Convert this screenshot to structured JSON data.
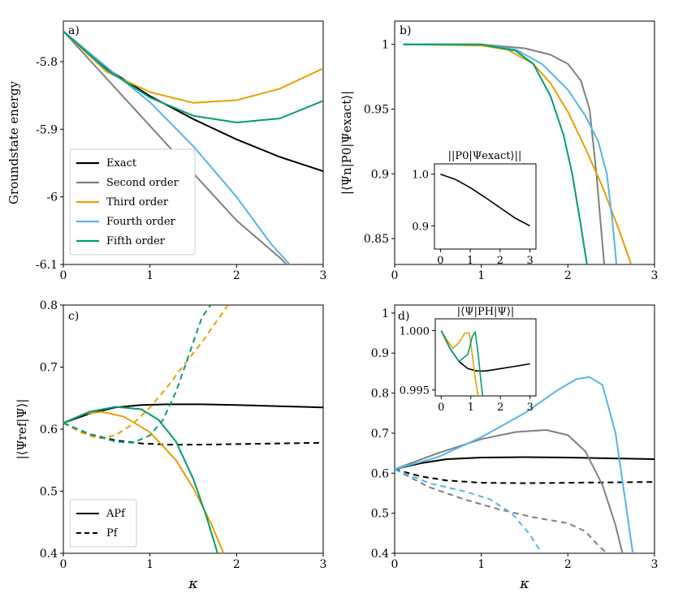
{
  "chart_data": [
    {
      "id": "a",
      "type": "line",
      "panel_label": "a)",
      "xlabel": "",
      "ylabel": "Groundstate energy",
      "xlim": [
        0,
        3
      ],
      "ylim": [
        -6.1,
        -5.74
      ],
      "xticks": [
        0,
        1,
        2,
        3
      ],
      "xtick_labels": [
        "0",
        "1",
        "2",
        "3"
      ],
      "yticks": [
        -6.1,
        -6.0,
        -5.9,
        -5.8
      ],
      "ytick_labels": [
        "-6.1",
        "-6",
        "-5.9",
        "-5.8"
      ],
      "legend": {
        "position": "bottom-left",
        "entries": [
          "Exact",
          "Second order",
          "Third order",
          "Fourth order",
          "Fifth order"
        ]
      },
      "series": [
        {
          "name": "Exact",
          "color": "#000000",
          "style": "solid",
          "x": [
            0,
            0.5,
            1.0,
            1.5,
            2.0,
            2.5,
            3.0
          ],
          "y": [
            -5.755,
            -5.81,
            -5.851,
            -5.885,
            -5.915,
            -5.941,
            -5.962
          ]
        },
        {
          "name": "Second order",
          "color": "#808080",
          "style": "solid",
          "x": [
            0,
            0.5,
            1.0,
            1.5,
            2.0,
            2.5,
            2.62
          ],
          "y": [
            -5.755,
            -5.825,
            -5.895,
            -5.965,
            -6.035,
            -6.09,
            -6.105
          ]
        },
        {
          "name": "Third order",
          "color": "#e6a000",
          "style": "solid",
          "x": [
            0,
            0.5,
            1.0,
            1.5,
            2.0,
            2.5,
            3.0
          ],
          "y": [
            -5.755,
            -5.815,
            -5.845,
            -5.861,
            -5.857,
            -5.84,
            -5.81
          ]
        },
        {
          "name": "Fourth order",
          "color": "#56b4e9",
          "style": "solid",
          "x": [
            0,
            0.5,
            1.0,
            1.5,
            2.0,
            2.4,
            2.65
          ],
          "y": [
            -5.755,
            -5.808,
            -5.86,
            -5.925,
            -6.0,
            -6.07,
            -6.105
          ]
        },
        {
          "name": "Fifth order",
          "color": "#009e73",
          "style": "solid",
          "x": [
            0,
            0.5,
            1.0,
            1.5,
            2.0,
            2.5,
            3.0
          ],
          "y": [
            -5.755,
            -5.812,
            -5.853,
            -5.88,
            -5.89,
            -5.884,
            -5.858
          ]
        }
      ]
    },
    {
      "id": "b",
      "type": "line",
      "panel_label": "b)",
      "xlabel": "",
      "ylabel": "|⟨Ψn|P0|Ψexact⟩|",
      "xlim": [
        0,
        3
      ],
      "ylim": [
        0.83,
        1.018
      ],
      "xticks": [
        0,
        1,
        2,
        3
      ],
      "xtick_labels": [
        "0",
        "1",
        "2",
        "3"
      ],
      "yticks": [
        0.85,
        0.9,
        0.95,
        1.0
      ],
      "ytick_labels": [
        "0.85",
        "0.9",
        "0.95",
        "1"
      ],
      "series": [
        {
          "name": "Second order",
          "color": "#808080",
          "style": "solid",
          "x": [
            0.1,
            1.0,
            1.5,
            1.8,
            2.0,
            2.15,
            2.25,
            2.33,
            2.38,
            2.42
          ],
          "y": [
            1.0,
            1.0,
            0.997,
            0.992,
            0.985,
            0.972,
            0.95,
            0.9,
            0.86,
            0.83
          ]
        },
        {
          "name": "Third order",
          "color": "#e6a000",
          "style": "solid",
          "x": [
            0.1,
            1.0,
            1.3,
            1.6,
            1.8,
            2.0,
            2.2,
            2.4,
            2.6,
            2.73
          ],
          "y": [
            1.0,
            0.999,
            0.996,
            0.985,
            0.97,
            0.948,
            0.92,
            0.89,
            0.855,
            0.83
          ]
        },
        {
          "name": "Fourth order",
          "color": "#56b4e9",
          "style": "solid",
          "x": [
            0.1,
            1.0,
            1.4,
            1.7,
            2.0,
            2.2,
            2.35,
            2.45,
            2.52,
            2.56
          ],
          "y": [
            1.0,
            1.0,
            0.996,
            0.985,
            0.965,
            0.945,
            0.925,
            0.9,
            0.86,
            0.83
          ]
        },
        {
          "name": "Fifth order",
          "color": "#009e73",
          "style": "solid",
          "x": [
            0.1,
            1.0,
            1.4,
            1.6,
            1.8,
            1.95,
            2.05,
            2.15,
            2.22
          ],
          "y": [
            1.0,
            1.0,
            0.995,
            0.985,
            0.96,
            0.93,
            0.9,
            0.86,
            0.83
          ]
        }
      ],
      "inset": {
        "title": "||P0|Ψexact⟩||",
        "xlim": [
          -0.2,
          3.2
        ],
        "ylim": [
          0.855,
          1.02
        ],
        "xticks": [
          0,
          1,
          2,
          3
        ],
        "xtick_labels": [
          "0",
          "1",
          "2",
          "3"
        ],
        "yticks": [
          0.9,
          1.0
        ],
        "ytick_labels": [
          "0.9",
          "1.0"
        ],
        "series": [
          {
            "name": "Exact",
            "color": "#000000",
            "style": "solid",
            "x": [
              0,
              0.5,
              1.0,
              1.5,
              2.0,
              2.5,
              3.0
            ],
            "y": [
              1.0,
              0.99,
              0.974,
              0.955,
              0.935,
              0.915,
              0.9
            ]
          }
        ]
      }
    },
    {
      "id": "c",
      "type": "line",
      "panel_label": "c)",
      "xlabel": "κ",
      "ylabel": "|⟨Ψref|Ψ⟩|",
      "xlim": [
        0,
        3
      ],
      "ylim": [
        0.4,
        0.8
      ],
      "xticks": [
        0,
        1,
        2,
        3
      ],
      "xtick_labels": [
        "0",
        "1",
        "2",
        "3"
      ],
      "yticks": [
        0.4,
        0.5,
        0.6,
        0.7,
        0.8
      ],
      "ytick_labels": [
        "0.4",
        "0.5",
        "0.6",
        "0.7",
        "0.8"
      ],
      "legend": {
        "position": "bottom-left",
        "entries": [
          "APf",
          "Pf"
        ]
      },
      "series": [
        {
          "name": "APf exact",
          "color": "#000000",
          "style": "solid",
          "x": [
            0,
            0.3,
            0.6,
            0.9,
            1.2,
            1.6,
            2.0,
            2.5,
            3.0
          ],
          "y": [
            0.61,
            0.625,
            0.635,
            0.639,
            0.64,
            0.64,
            0.639,
            0.637,
            0.635
          ]
        },
        {
          "name": "Pf exact",
          "color": "#000000",
          "style": "dashed",
          "x": [
            0,
            0.3,
            0.6,
            0.9,
            1.2,
            1.6,
            2.0,
            2.5,
            3.0
          ],
          "y": [
            0.61,
            0.592,
            0.582,
            0.577,
            0.575,
            0.575,
            0.576,
            0.577,
            0.578
          ]
        },
        {
          "name": "APf third",
          "color": "#e6a000",
          "style": "solid",
          "x": [
            0,
            0.25,
            0.45,
            0.7,
            1.0,
            1.3,
            1.5,
            1.7,
            1.85
          ],
          "y": [
            0.61,
            0.625,
            0.628,
            0.62,
            0.595,
            0.55,
            0.505,
            0.45,
            0.4
          ]
        },
        {
          "name": "APf fifth",
          "color": "#009e73",
          "style": "solid",
          "x": [
            0,
            0.3,
            0.6,
            0.9,
            1.1,
            1.3,
            1.5,
            1.65,
            1.78
          ],
          "y": [
            0.61,
            0.628,
            0.636,
            0.632,
            0.615,
            0.58,
            0.52,
            0.46,
            0.4
          ]
        },
        {
          "name": "Pf third",
          "color": "#e6a000",
          "style": "dashed",
          "x": [
            0,
            0.2,
            0.4,
            0.6,
            0.8,
            1.0,
            1.2,
            1.4,
            1.6,
            1.8,
            1.9
          ],
          "y": [
            0.61,
            0.595,
            0.585,
            0.59,
            0.608,
            0.635,
            0.668,
            0.705,
            0.74,
            0.78,
            0.8
          ]
        },
        {
          "name": "Pf fifth",
          "color": "#009e73",
          "style": "dashed",
          "x": [
            0,
            0.3,
            0.6,
            0.8,
            1.0,
            1.15,
            1.3,
            1.45,
            1.6,
            1.7
          ],
          "y": [
            0.61,
            0.592,
            0.58,
            0.578,
            0.59,
            0.615,
            0.66,
            0.72,
            0.78,
            0.8
          ]
        }
      ]
    },
    {
      "id": "d",
      "type": "line",
      "panel_label": "d)",
      "xlabel": "κ",
      "ylabel": "",
      "xlim": [
        0,
        3
      ],
      "ylim": [
        0.4,
        1.02
      ],
      "xticks": [
        0,
        1,
        2,
        3
      ],
      "xtick_labels": [
        "0",
        "1",
        "2",
        "3"
      ],
      "yticks": [
        0.4,
        0.5,
        0.6,
        0.7,
        0.8,
        0.9,
        1.0
      ],
      "ytick_labels": [
        "0.4",
        "0.5",
        "0.6",
        "0.7",
        "0.8",
        "0.9",
        "1"
      ],
      "series": [
        {
          "name": "APf exact",
          "color": "#000000",
          "style": "solid",
          "x": [
            0,
            0.3,
            0.6,
            1.0,
            1.5,
            2.0,
            2.5,
            3.0
          ],
          "y": [
            0.61,
            0.625,
            0.635,
            0.639,
            0.64,
            0.639,
            0.637,
            0.635
          ]
        },
        {
          "name": "Pf exact",
          "color": "#000000",
          "style": "dashed",
          "x": [
            0,
            0.3,
            0.6,
            1.0,
            1.5,
            2.0,
            2.5,
            3.0
          ],
          "y": [
            0.61,
            0.592,
            0.582,
            0.576,
            0.575,
            0.576,
            0.577,
            0.578
          ]
        },
        {
          "name": "APf second",
          "color": "#808080",
          "style": "solid",
          "x": [
            0,
            0.5,
            1.0,
            1.4,
            1.75,
            2.0,
            2.2,
            2.4,
            2.55,
            2.63
          ],
          "y": [
            0.61,
            0.65,
            0.685,
            0.703,
            0.708,
            0.695,
            0.655,
            0.57,
            0.47,
            0.4
          ]
        },
        {
          "name": "APf fourth",
          "color": "#56b4e9",
          "style": "solid",
          "x": [
            0,
            0.5,
            1.0,
            1.5,
            1.9,
            2.1,
            2.25,
            2.4,
            2.55,
            2.65,
            2.75
          ],
          "y": [
            0.61,
            0.64,
            0.69,
            0.75,
            0.81,
            0.835,
            0.84,
            0.82,
            0.7,
            0.55,
            0.4
          ]
        },
        {
          "name": "Pf second",
          "color": "#808080",
          "style": "dashed",
          "x": [
            0,
            0.4,
            0.8,
            1.2,
            1.6,
            2.0,
            2.2,
            2.35,
            2.45
          ],
          "y": [
            0.61,
            0.565,
            0.535,
            0.51,
            0.49,
            0.475,
            0.455,
            0.42,
            0.4
          ]
        },
        {
          "name": "Pf fourth",
          "color": "#56b4e9",
          "style": "dashed",
          "x": [
            0,
            0.4,
            0.8,
            1.1,
            1.35,
            1.55,
            1.7
          ],
          "y": [
            0.61,
            0.575,
            0.555,
            0.535,
            0.5,
            0.45,
            0.4
          ]
        }
      ],
      "inset": {
        "title": "|⟨Ψ|PH|Ψ⟩|",
        "xlim": [
          -0.2,
          3.2
        ],
        "ylim": [
          0.9945,
          1.001
        ],
        "xticks": [
          0,
          1,
          2,
          3
        ],
        "xtick_labels": [
          "0",
          "1",
          "2",
          "3"
        ],
        "yticks": [
          0.995,
          1.0
        ],
        "ytick_labels": [
          "0.995",
          "1.000"
        ],
        "series": [
          {
            "name": "Exact",
            "color": "#000000",
            "style": "solid",
            "x": [
              0,
              0.3,
              0.6,
              0.9,
              1.2,
              1.5,
              2.0,
              2.5,
              3.0
            ],
            "y": [
              1.0,
              0.9985,
              0.9974,
              0.9968,
              0.9966,
              0.9966,
              0.9968,
              0.997,
              0.9972
            ]
          },
          {
            "name": "Third",
            "color": "#e6a000",
            "style": "solid",
            "x": [
              0,
              0.2,
              0.4,
              0.6,
              0.8,
              0.95,
              1.05,
              1.15,
              1.25
            ],
            "y": [
              1.0,
              0.9992,
              0.9985,
              0.999,
              0.9998,
              0.9998,
              0.998,
              0.996,
              0.9945
            ]
          },
          {
            "name": "Fifth",
            "color": "#009e73",
            "style": "solid",
            "x": [
              0,
              0.3,
              0.6,
              0.9,
              1.05,
              1.15,
              1.25,
              1.33,
              1.4
            ],
            "y": [
              1.0,
              0.9985,
              0.9974,
              0.998,
              0.9995,
              0.9999,
              0.998,
              0.996,
              0.9945
            ]
          }
        ]
      }
    }
  ]
}
